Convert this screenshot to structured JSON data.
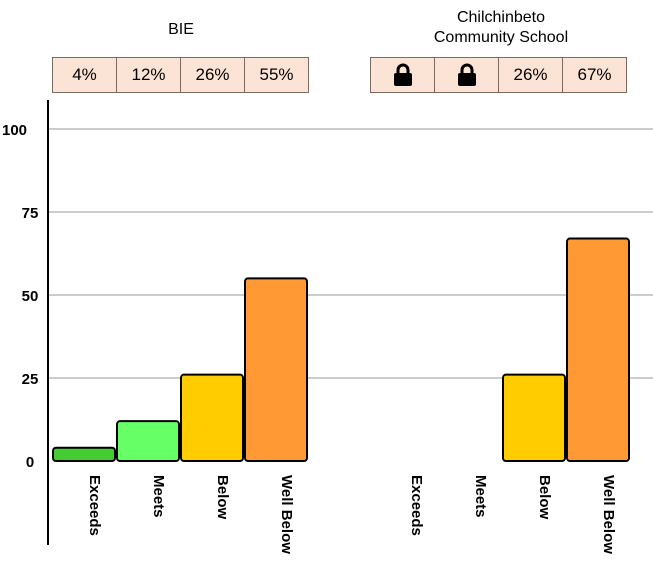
{
  "chart_data": {
    "type": "bar",
    "ylim": [
      0,
      100
    ],
    "yticks": [
      0,
      25,
      50,
      75,
      100
    ],
    "grid": true,
    "categories": [
      "Exceeds",
      "Meets",
      "Below",
      "Well Below"
    ],
    "category_colors": [
      "#44cc33",
      "#66ff66",
      "#ffcc00",
      "#ff9933"
    ],
    "groups": [
      {
        "name": "BIE",
        "pct_labels": [
          "4%",
          "12%",
          "26%",
          "55%"
        ],
        "values": [
          4,
          12,
          26,
          55
        ],
        "locked": [
          false,
          false,
          false,
          false
        ]
      },
      {
        "name": "Chilchinbeto\nCommunity School",
        "pct_labels": [
          "",
          "",
          "26%",
          "67%"
        ],
        "values": [
          null,
          null,
          26,
          67
        ],
        "locked": [
          true,
          true,
          false,
          false
        ]
      }
    ]
  }
}
